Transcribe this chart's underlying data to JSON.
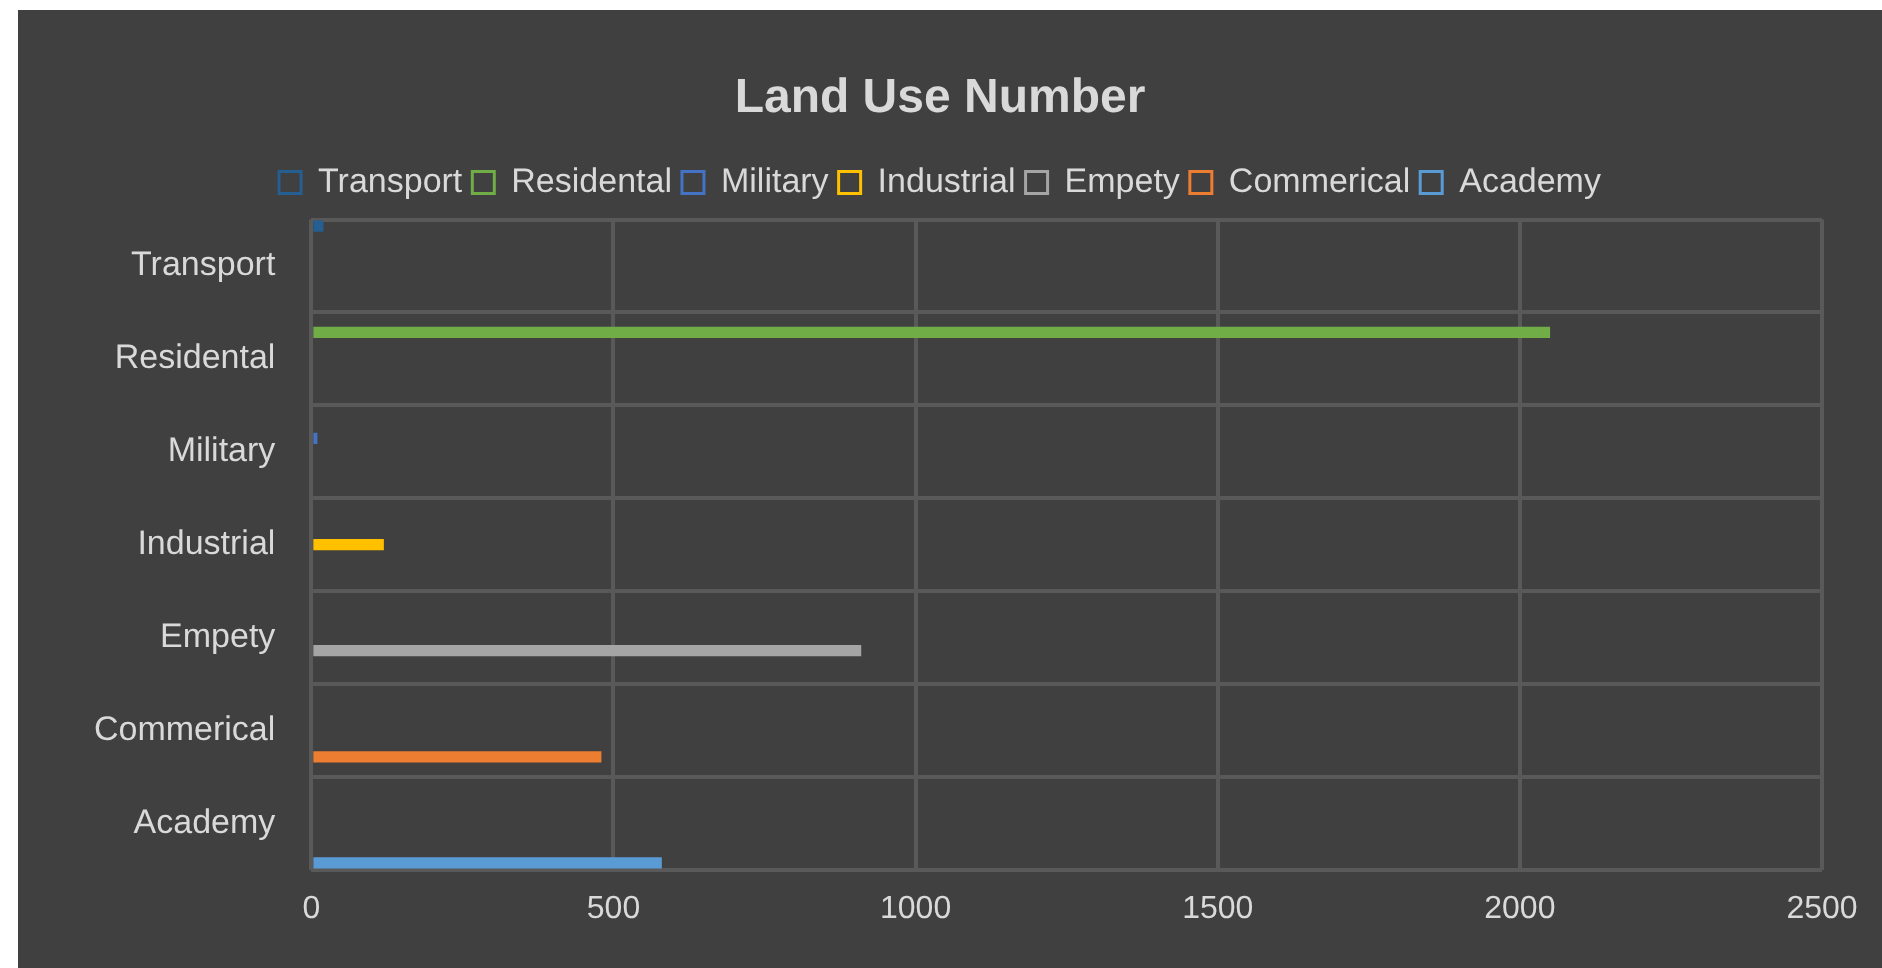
{
  "chart_data": {
    "type": "bar",
    "orientation": "horizontal",
    "title": "Land Use Number",
    "categories": [
      "Transport",
      "Residental",
      "Military",
      "Industrial",
      "Empety",
      "Commerical",
      "Academy"
    ],
    "series": [
      {
        "name": "Transport",
        "color": "#255e91",
        "values": [
          20,
          null,
          null,
          null,
          null,
          null,
          null
        ]
      },
      {
        "name": "Residental",
        "color": "#70ad47",
        "values": [
          null,
          2050,
          null,
          null,
          null,
          null,
          null
        ]
      },
      {
        "name": "Military",
        "color": "#4472c4",
        "values": [
          null,
          null,
          10,
          null,
          null,
          null,
          null
        ]
      },
      {
        "name": "Industrial",
        "color": "#ffc000",
        "values": [
          null,
          null,
          null,
          120,
          null,
          null,
          null
        ]
      },
      {
        "name": "Empety",
        "color": "#a5a5a5",
        "values": [
          null,
          null,
          null,
          null,
          910,
          null,
          null
        ]
      },
      {
        "name": "Commerical",
        "color": "#ed7d31",
        "values": [
          null,
          null,
          null,
          null,
          null,
          480,
          null
        ]
      },
      {
        "name": "Academy",
        "color": "#5b9bd5",
        "values": [
          null,
          null,
          null,
          null,
          null,
          null,
          580
        ]
      }
    ],
    "xlim": [
      0,
      2500
    ],
    "xticks": [
      0,
      500,
      1000,
      1500,
      2000,
      2500
    ],
    "grid": true,
    "legend": "top"
  }
}
